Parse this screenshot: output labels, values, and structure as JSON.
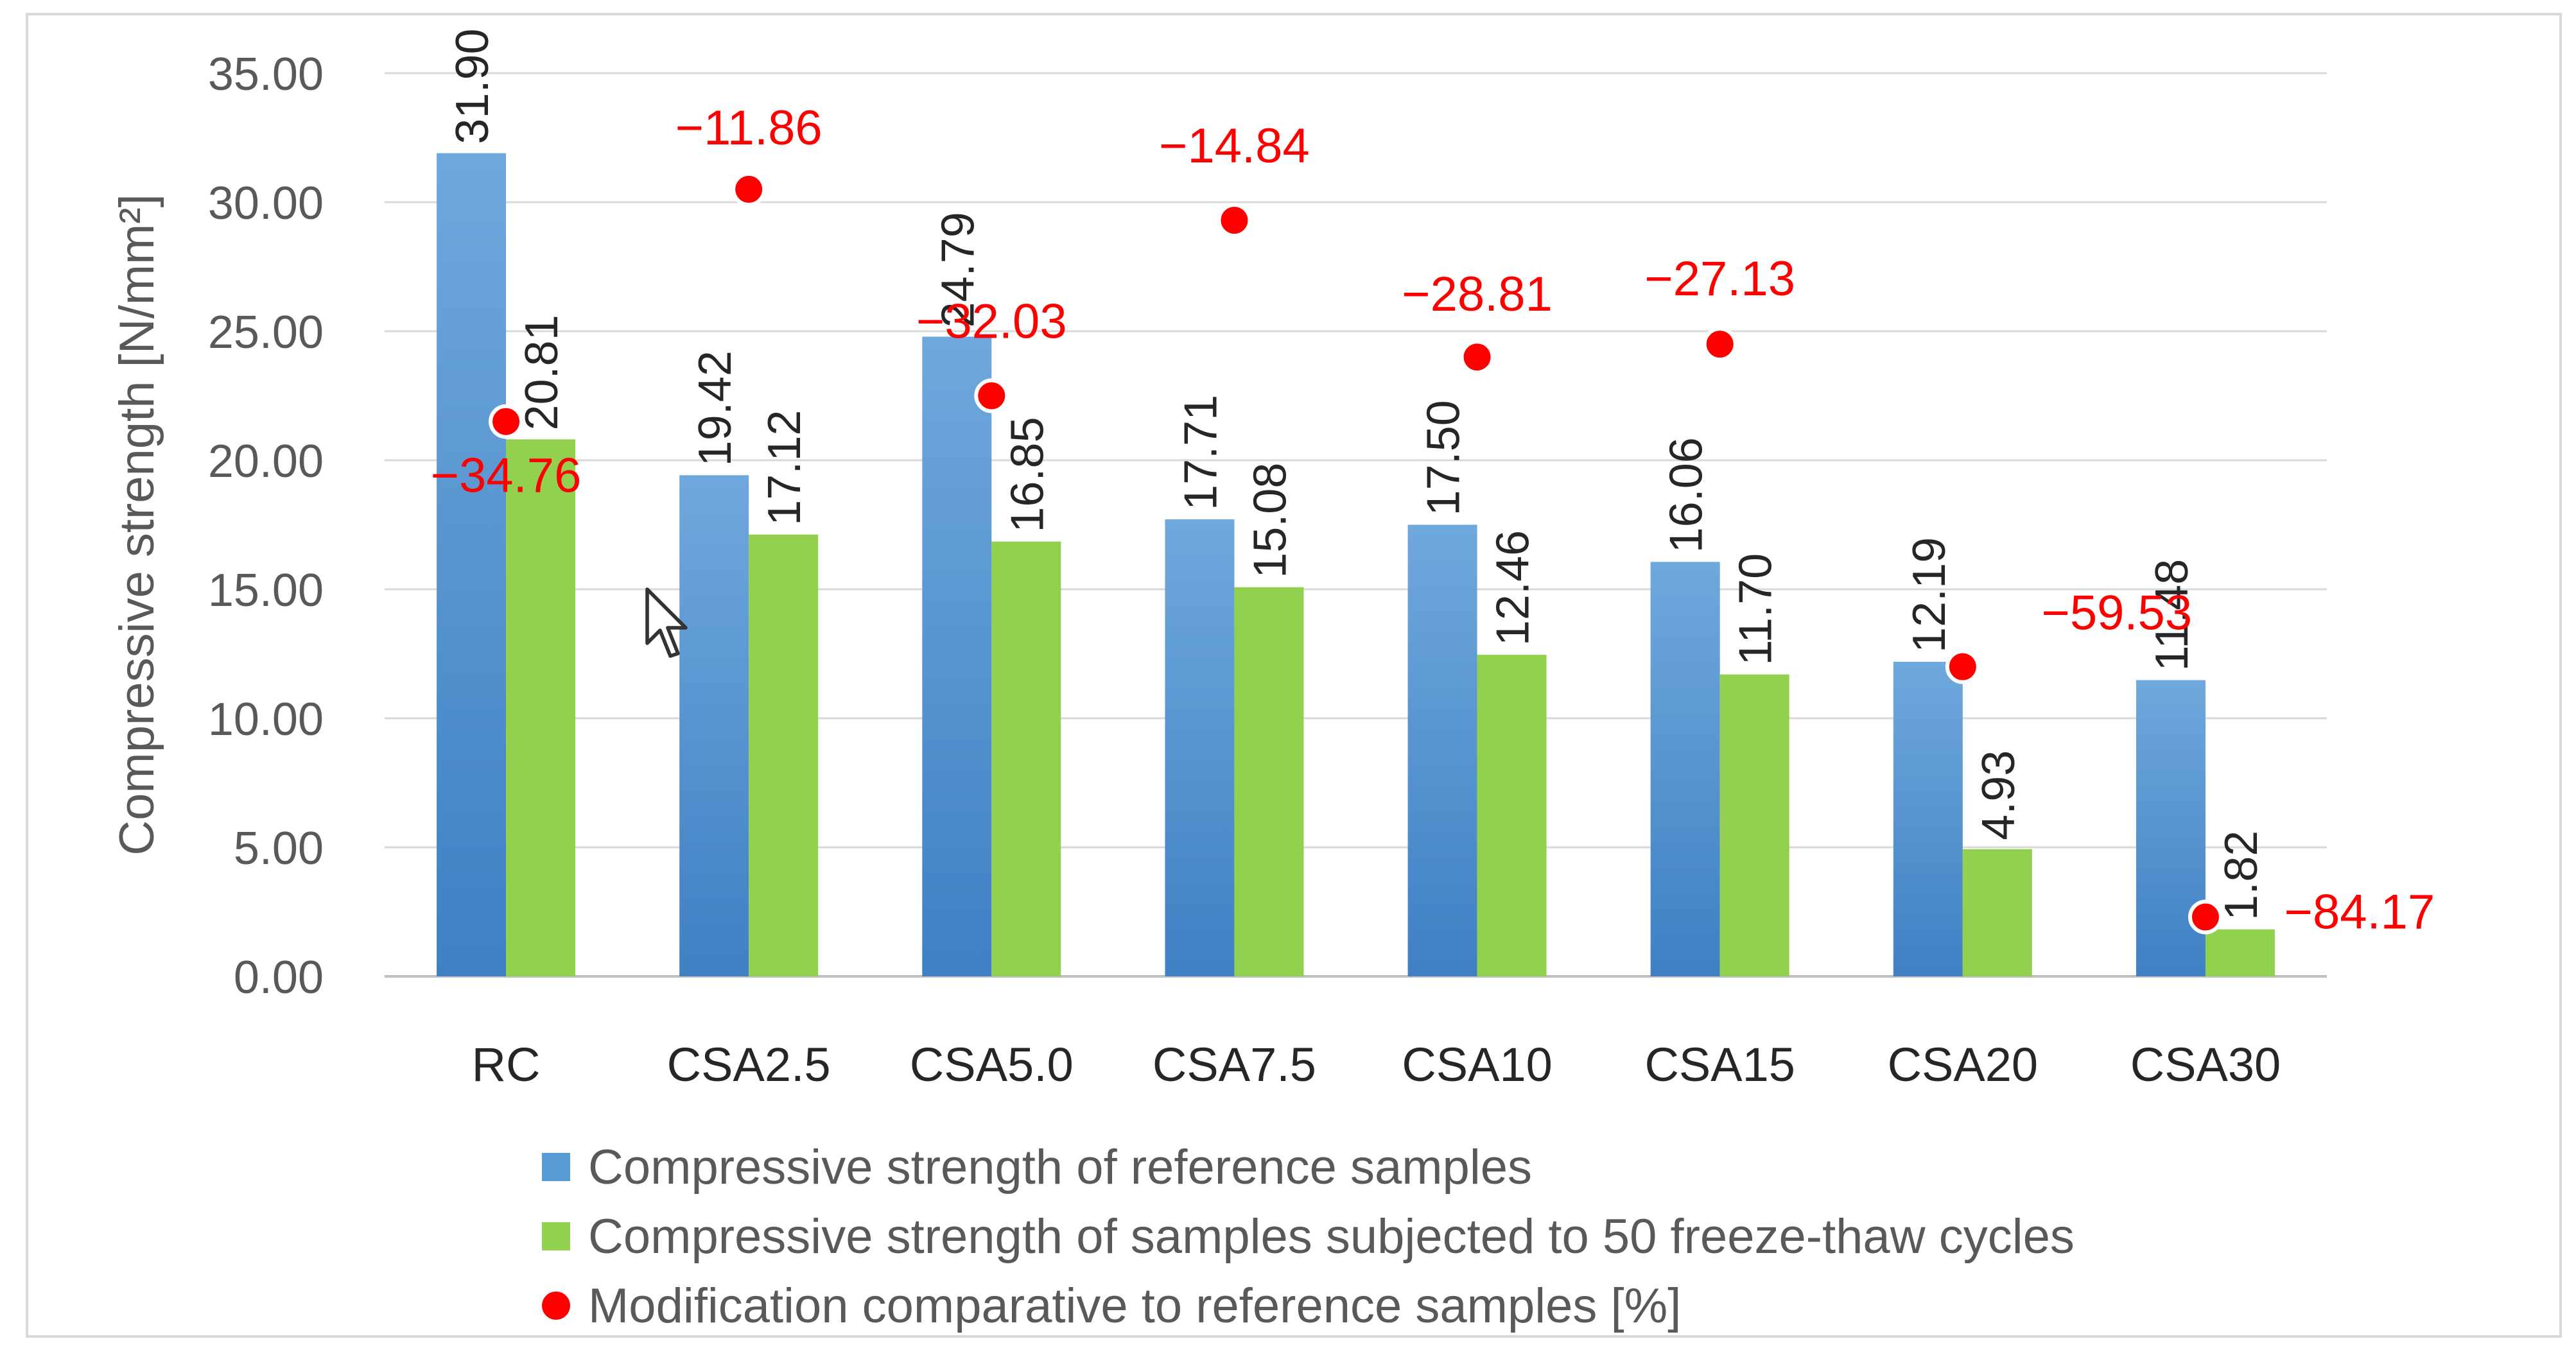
{
  "chart_data": {
    "type": "bar",
    "ylabel": "Compressive strength [N/mm²]",
    "ylim": [
      0,
      35
    ],
    "yticks": [
      "0.00",
      "5.00",
      "10.00",
      "15.00",
      "20.00",
      "25.00",
      "30.00",
      "35.00"
    ],
    "categories": [
      "RC",
      "CSA2.5",
      "CSA5.0",
      "CSA7.5",
      "CSA10",
      "CSA15",
      "CSA20",
      "CSA30"
    ],
    "series": [
      {
        "name": "Compressive strength of reference samples",
        "color": "#5b9bd5",
        "values": [
          31.9,
          19.42,
          24.79,
          17.71,
          17.5,
          16.06,
          12.19,
          11.48
        ],
        "labels": [
          "31.90",
          "19.42",
          "24.79",
          "17.71",
          "17.50",
          "16.06",
          "12.19",
          "11.48"
        ]
      },
      {
        "name": "Compressive strength of samples subjected to 50 freeze-thaw cycles",
        "color": "#92d050",
        "values": [
          20.81,
          17.12,
          16.85,
          15.08,
          12.46,
          11.7,
          4.93,
          1.82
        ],
        "labels": [
          "20.81",
          "17.12",
          "16.85",
          "15.08",
          "12.46",
          "11.70",
          "4.93",
          "1.82"
        ]
      }
    ],
    "scatter": {
      "name": "Modification comparative to reference samples  [%]",
      "color": "#ff0000",
      "values": [
        -34.76,
        -11.86,
        -32.03,
        -14.84,
        -28.81,
        -27.13,
        -59.53,
        -84.17
      ],
      "labels": [
        "−34.76",
        "−11.86",
        "−32.03",
        "−14.84",
        "−28.81",
        "−27.13",
        "−59.53",
        "−84.17"
      ],
      "marker_y": [
        21.5,
        30.5,
        22.5,
        29.3,
        24.0,
        24.5,
        12.0,
        2.3
      ]
    }
  }
}
